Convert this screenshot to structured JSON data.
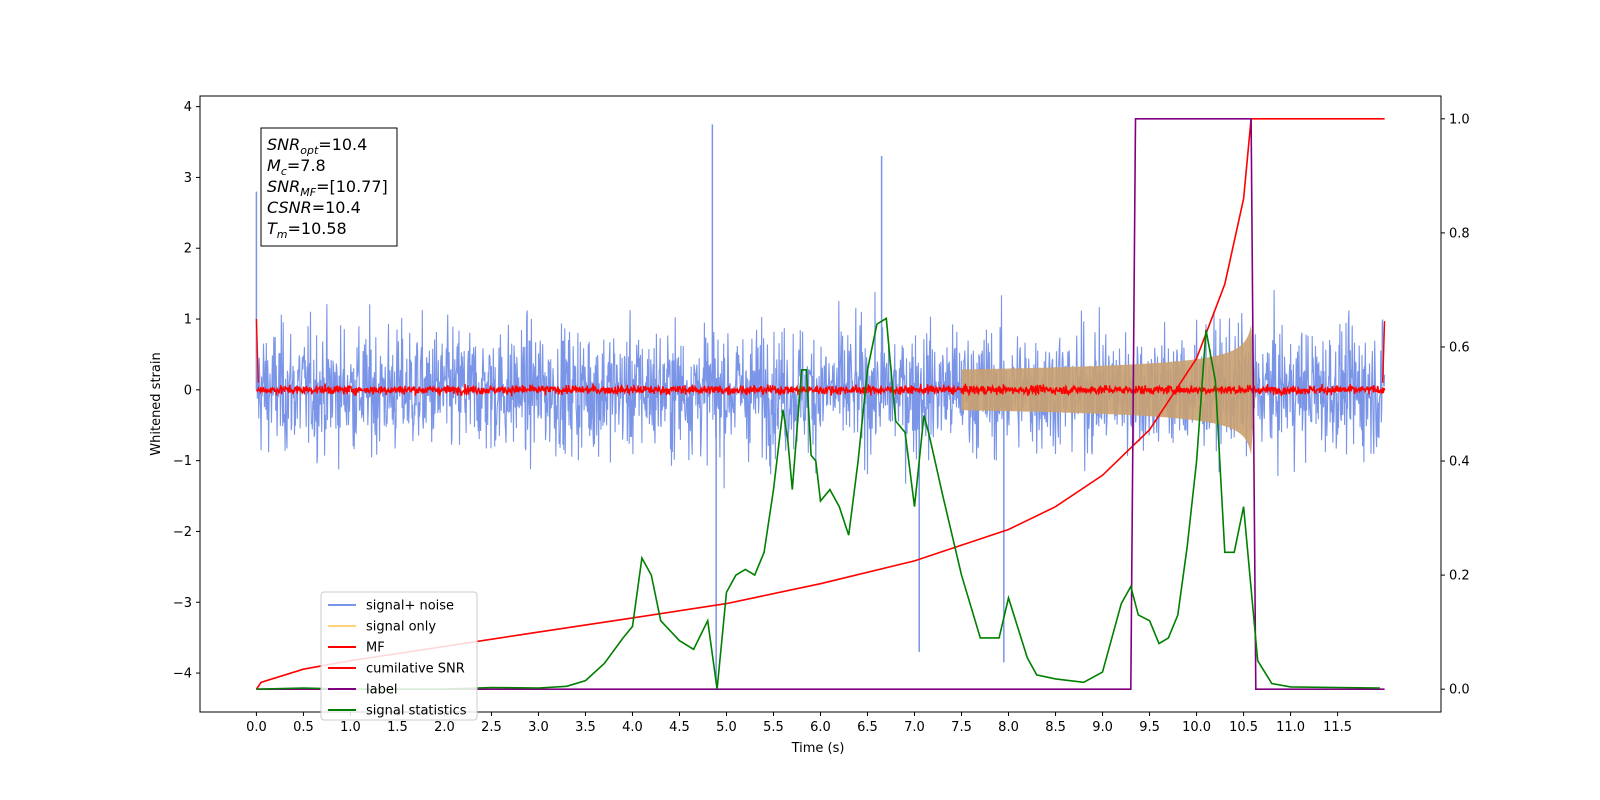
{
  "chart_data": {
    "type": "line",
    "title": "",
    "xlabel": "Time (s)",
    "ylabel": "Whitened strain",
    "xlim": [
      -0.6,
      12.6
    ],
    "ylim": [
      -4.55,
      4.15
    ],
    "y2lim": [
      -0.04,
      1.04
    ],
    "x_ticks": [
      0.0,
      0.5,
      1.0,
      1.5,
      2.0,
      2.5,
      3.0,
      3.5,
      4.0,
      4.5,
      5.0,
      5.5,
      6.0,
      6.5,
      7.0,
      7.5,
      8.0,
      8.5,
      9.0,
      9.5,
      10.0,
      10.5,
      11.0,
      11.5
    ],
    "x_tick_labels": [
      "0.0",
      "0.5",
      "1.0",
      "1.5",
      "2.0",
      "2.5",
      "3.0",
      "3.5",
      "4.0",
      "4.5",
      "5.0",
      "5.5",
      "6.0",
      "6.5",
      "7.0",
      "7.5",
      "8.0",
      "8.5",
      "9.0",
      "9.5",
      "10.0",
      "10.5",
      "11.0",
      "11.5"
    ],
    "y_ticks": [
      -4,
      -3,
      -2,
      -1,
      0,
      1,
      2,
      3,
      4
    ],
    "y_tick_labels": [
      "−4",
      "−3",
      "−2",
      "−1",
      "0",
      "1",
      "2",
      "3",
      "4"
    ],
    "y2_ticks": [
      0.0,
      0.2,
      0.4,
      0.6,
      0.8,
      1.0
    ],
    "y2_tick_labels": [
      "0.0",
      "0.2",
      "0.4",
      "0.6",
      "0.8",
      "1.0"
    ],
    "grid": false,
    "legend_position": "lower-left",
    "annotation": [
      {
        "sym": "SNR",
        "sub": "opt",
        "value": "=10.4"
      },
      {
        "sym": "M",
        "sub": "c",
        "value": "=7.8"
      },
      {
        "sym": "SNR",
        "sub": "MF",
        "value": "=[10.77]"
      },
      {
        "sym": "CSNR",
        "sub": "",
        "value": "=10.4"
      },
      {
        "sym": "T",
        "sub": "m",
        "value": "=10.58"
      }
    ],
    "series": [
      {
        "name": "signal+ noise",
        "color": "#7a95e8",
        "axis": "left",
        "kind": "noise_band",
        "x_range": [
          0.0,
          12.0
        ],
        "typical_envelope": [
          -1.5,
          1.5
        ],
        "peaks": [
          {
            "x": 4.85,
            "y": 3.75
          },
          {
            "x": 4.89,
            "y": -4.15
          },
          {
            "x": 0.0,
            "y": 2.8
          },
          {
            "x": 6.65,
            "y": 3.3
          },
          {
            "x": 7.05,
            "y": -3.7
          },
          {
            "x": 7.95,
            "y": -3.85
          }
        ]
      },
      {
        "name": "signal only",
        "color": "#ffd27a",
        "axis": "left",
        "kind": "chirp",
        "merger_time": 10.58,
        "peak_amplitude": 0.92
      },
      {
        "name": "MF",
        "color": "#ff0000",
        "axis": "left",
        "kind": "noise_band",
        "x_range": [
          0.0,
          12.0
        ],
        "typical_envelope": [
          -0.1,
          0.1
        ]
      },
      {
        "name": "cumilative SNR",
        "color": "#ff0000",
        "axis": "right",
        "x": [
          0.0,
          0.05,
          0.5,
          1.0,
          2.0,
          3.0,
          4.0,
          5.0,
          6.0,
          7.0,
          8.0,
          8.5,
          9.0,
          9.5,
          10.0,
          10.3,
          10.5,
          10.58,
          12.0
        ],
        "y": [
          0.0,
          0.012,
          0.035,
          0.05,
          0.075,
          0.1,
          0.125,
          0.15,
          0.185,
          0.225,
          0.28,
          0.32,
          0.375,
          0.455,
          0.58,
          0.71,
          0.86,
          1.0,
          1.0
        ]
      },
      {
        "name": "label",
        "color": "#800080",
        "axis": "right",
        "x": [
          0.0,
          9.3,
          9.35,
          10.58,
          10.63,
          12.0
        ],
        "y": [
          0.0,
          0.0,
          1.0,
          1.0,
          0.0,
          0.0
        ]
      },
      {
        "name": "signal statistics",
        "color": "#008000",
        "axis": "right",
        "x": [
          0.0,
          0.5,
          1.0,
          1.5,
          2.0,
          2.5,
          3.0,
          3.3,
          3.5,
          3.7,
          3.9,
          4.0,
          4.1,
          4.2,
          4.3,
          4.5,
          4.65,
          4.8,
          4.9,
          5.0,
          5.1,
          5.2,
          5.3,
          5.4,
          5.5,
          5.6,
          5.65,
          5.7,
          5.8,
          5.85,
          5.9,
          5.95,
          6.0,
          6.1,
          6.2,
          6.3,
          6.4,
          6.5,
          6.6,
          6.7,
          6.8,
          6.9,
          7.0,
          7.1,
          7.15,
          7.3,
          7.5,
          7.7,
          7.9,
          8.0,
          8.2,
          8.3,
          8.5,
          8.8,
          9.0,
          9.2,
          9.3,
          9.38,
          9.5,
          9.6,
          9.7,
          9.8,
          9.9,
          10.0,
          10.1,
          10.2,
          10.3,
          10.4,
          10.5,
          10.6,
          10.65,
          10.8,
          11.0,
          11.5,
          11.95
        ],
        "y": [
          0.0,
          0.002,
          0.0,
          0.0,
          0.0,
          0.003,
          0.002,
          0.005,
          0.015,
          0.045,
          0.09,
          0.11,
          0.23,
          0.2,
          0.12,
          0.085,
          0.07,
          0.12,
          0.0,
          0.17,
          0.2,
          0.21,
          0.2,
          0.24,
          0.35,
          0.49,
          0.44,
          0.35,
          0.56,
          0.56,
          0.41,
          0.4,
          0.33,
          0.35,
          0.32,
          0.27,
          0.4,
          0.56,
          0.64,
          0.65,
          0.47,
          0.45,
          0.32,
          0.48,
          0.45,
          0.34,
          0.2,
          0.09,
          0.09,
          0.16,
          0.055,
          0.025,
          0.018,
          0.012,
          0.03,
          0.15,
          0.18,
          0.13,
          0.12,
          0.08,
          0.09,
          0.13,
          0.25,
          0.4,
          0.63,
          0.54,
          0.24,
          0.24,
          0.32,
          0.14,
          0.05,
          0.01,
          0.004,
          0.003,
          0.002
        ]
      }
    ]
  }
}
